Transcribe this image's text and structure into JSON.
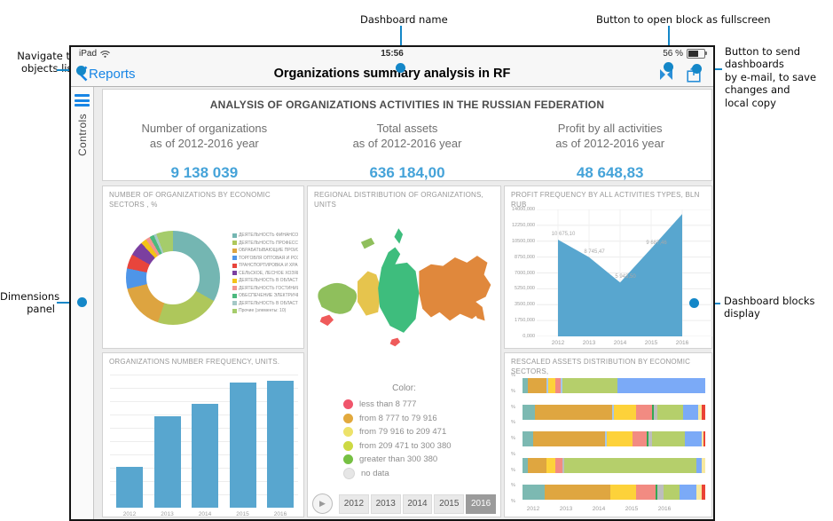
{
  "annotations": {
    "navigate_line1": "Navigate to",
    "navigate_line2": "objects list",
    "dashboard_name": "Dashboard name",
    "fullscreen": "Button to open block as fullscreen",
    "send_lines": [
      "Button to send",
      "dashboards",
      "by e-mail, to save",
      "changes and",
      "local copy"
    ],
    "dimensions_line1": "Dimensions",
    "dimensions_line2": "panel",
    "blocks_line1": "Dashboard blocks",
    "blocks_line2": "display"
  },
  "status_bar": {
    "device": "iPad",
    "time": "15:56",
    "battery": "56 %"
  },
  "nav_bar": {
    "back_label": "Reports",
    "title": "Organizations summary analysis in RF"
  },
  "sidebar": {
    "label": "Controls"
  },
  "summary": {
    "title": "ANALYSIS OF ORGANIZATIONS ACTIVITIES IN THE RUSSIAN FEDERATION",
    "kpis": [
      {
        "label1": "Number of organizations",
        "label2": "as of 2012-2016 year",
        "value": "9 138 039"
      },
      {
        "label1": "Total assets",
        "label2": "as of 2012-2016 year",
        "value": "636 184,00"
      },
      {
        "label1": "Profit by all activities",
        "label2": "as of 2012-2016 year",
        "value": "48 648,83"
      }
    ]
  },
  "map": {
    "title": "REGIONAL DISTRIBUTION OF ORGANIZATIONS, UNITS",
    "legend_title": "Color:",
    "legend": [
      {
        "label": "less than 8 777",
        "color": "#f0556b"
      },
      {
        "label": "from 8 777 to 79 916",
        "color": "#e2a93d"
      },
      {
        "label": "from 79 916 to 209 471",
        "color": "#ede26a"
      },
      {
        "label": "from 209 471 to 300 380",
        "color": "#cdd943"
      },
      {
        "label": "greater than 300 380",
        "color": "#76c043"
      },
      {
        "label": "no data",
        "color": "#e6e6e6"
      }
    ],
    "years": [
      "2012",
      "2013",
      "2014",
      "2015",
      "2016"
    ],
    "selected_year": "2016",
    "region_colors": {
      "west": "#8fbf5c",
      "ural": "#e6c44d",
      "siberia": "#3ebd7d",
      "fareast": "#e0883c",
      "south": "#ef5a5a"
    }
  },
  "chart_data": [
    {
      "id": "sectors-donut",
      "type": "pie",
      "donut": true,
      "title": "NUMBER OF ORGANIZATIONS BY ECONOMIC SECTORS , %",
      "legend_position": "right",
      "labels": [
        "ДЕЯТЕЛЬНОСТЬ ФИНАНСОВ...",
        "ДЕЯТЕЛЬНОСТЬ ПРОФЕССИ...",
        "ОБРАБАТЫВАЮЩИЕ ПРОИЗВ...",
        "ТОРГОВЛЯ ОПТОВАЯ И РОЗН...",
        "ТРАНСПОРТИРОВКА И ХРАНЕ...",
        "СЕЛЬСКОЕ, ЛЕСНОЕ ХОЗЯЙС...",
        "ДЕЯТЕЛЬНОСТЬ В ОБЛАСТИ...",
        "ДЕЯТЕЛЬНОСТЬ ГОСТИНИЦ...",
        "ОБЕСПЕЧЕНИЕ ЭЛЕКТРИЧЕС...",
        "ДЕЯТЕЛЬНОСТЬ В ОБЛАСТИ...",
        "Прочие (элементы: 10)"
      ],
      "values": [
        36,
        22,
        16,
        7,
        5,
        5,
        2,
        1.5,
        1.5,
        1,
        3
      ],
      "colors": [
        "#74b6b2",
        "#aec75b",
        "#dda440",
        "#4e95e8",
        "#e8453c",
        "#7b3fa0",
        "#f3c317",
        "#f2948f",
        "#4cb97e",
        "#a4c8c6",
        "#a5cc6b"
      ]
    },
    {
      "id": "profit-area",
      "type": "area",
      "title": "PROFIT FREQUENCY BY ALL ACTIVITIES TYPES, BLN RUB",
      "x": [
        "2012",
        "2013",
        "2014",
        "2015",
        "2016"
      ],
      "values": [
        10675.1,
        8745.47,
        5943.5,
        9687.46,
        13500
      ],
      "point_labels": [
        "10 675,10",
        "8 745,47",
        "5 943,50",
        "9 687,46",
        ""
      ],
      "ylim": [
        0,
        14000
      ],
      "yticks": [
        "14000,000",
        "12250,000",
        "10500,000",
        "8750,000",
        "7000,000",
        "5250,000",
        "3500,000",
        "1750,000",
        "0,000"
      ],
      "grid": true,
      "color": "#58a6cf"
    },
    {
      "id": "org-number-bars",
      "type": "bar",
      "title": "ORGANIZATIONS NUMBER FREQUENCY, UNITS.",
      "categories": [
        "2012",
        "2013",
        "2014",
        "2015",
        "2016"
      ],
      "values": [
        30,
        68,
        77,
        93,
        94
      ],
      "ylim": [
        0,
        100
      ],
      "note": "relative bar heights in % of plot, y-axis labels not shown",
      "color": "#58a6cf"
    },
    {
      "id": "rescaled-assets-stacked",
      "type": "bar",
      "orientation": "horizontal-stacked",
      "title": "RESCALED ASSETS DISTRIBUTION BY ECONOMIC SECTORS,",
      "xticks": [
        "2012",
        "2013",
        "2014",
        "2015",
        "2016"
      ],
      "yticks": [
        "%",
        "%",
        "%",
        "%",
        "%",
        "%",
        "%",
        "%",
        "%"
      ],
      "rows": [
        {
          "segments": [
            {
              "color": "#7cb9b2",
              "value": 3
            },
            {
              "color": "#dfa640",
              "value": 10
            },
            {
              "color": "#a7c7e7",
              "value": 1
            },
            {
              "color": "#fdd23a",
              "value": 4
            },
            {
              "color": "#f28b82",
              "value": 3
            },
            {
              "color": "#a7c7e7",
              "value": 1
            },
            {
              "color": "#b5cf6b",
              "value": 30
            },
            {
              "color": "#7baaf7",
              "value": 48
            }
          ]
        },
        {
          "segments": [
            {
              "color": "#7cb9b2",
              "value": 7
            },
            {
              "color": "#dfa640",
              "value": 42
            },
            {
              "color": "#a7c7e7",
              "value": 1
            },
            {
              "color": "#fdd23a",
              "value": 12
            },
            {
              "color": "#f28b82",
              "value": 9
            },
            {
              "color": "#34a853",
              "value": 1
            },
            {
              "color": "#bdbdbd",
              "value": 2
            },
            {
              "color": "#b5cf6b",
              "value": 14
            },
            {
              "color": "#7baaf7",
              "value": 8
            },
            {
              "color": "#f7e9a0",
              "value": 2
            },
            {
              "color": "#ea4335",
              "value": 2
            }
          ]
        },
        {
          "segments": [
            {
              "color": "#7cb9b2",
              "value": 6
            },
            {
              "color": "#dfa640",
              "value": 39
            },
            {
              "color": "#a7c7e7",
              "value": 1
            },
            {
              "color": "#fdd23a",
              "value": 14
            },
            {
              "color": "#f28b82",
              "value": 8
            },
            {
              "color": "#34a853",
              "value": 1
            },
            {
              "color": "#bdbdbd",
              "value": 2
            },
            {
              "color": "#b5cf6b",
              "value": 18
            },
            {
              "color": "#7baaf7",
              "value": 9
            },
            {
              "color": "#f7e9a0",
              "value": 1
            },
            {
              "color": "#ea4335",
              "value": 1
            }
          ]
        },
        {
          "segments": [
            {
              "color": "#7cb9b2",
              "value": 3
            },
            {
              "color": "#dfa640",
              "value": 10
            },
            {
              "color": "#fdd23a",
              "value": 5
            },
            {
              "color": "#f28b82",
              "value": 4
            },
            {
              "color": "#bdbdbd",
              "value": 1
            },
            {
              "color": "#b5cf6b",
              "value": 72
            },
            {
              "color": "#7baaf7",
              "value": 3
            },
            {
              "color": "#f7e9a0",
              "value": 2
            }
          ]
        },
        {
          "segments": [
            {
              "color": "#7cb9b2",
              "value": 12
            },
            {
              "color": "#dfa640",
              "value": 36
            },
            {
              "color": "#fdd23a",
              "value": 14
            },
            {
              "color": "#f28b82",
              "value": 11
            },
            {
              "color": "#34a853",
              "value": 1
            },
            {
              "color": "#bdbdbd",
              "value": 3
            },
            {
              "color": "#b5cf6b",
              "value": 9
            },
            {
              "color": "#7baaf7",
              "value": 9
            },
            {
              "color": "#f7e9a0",
              "value": 3
            },
            {
              "color": "#ea4335",
              "value": 2
            }
          ]
        }
      ]
    }
  ],
  "colors": {
    "accent_blue": "#1785e5",
    "connector_blue": "#1487c8",
    "kpi_blue": "#45a3d9",
    "chart_blue": "#58a6cf"
  }
}
